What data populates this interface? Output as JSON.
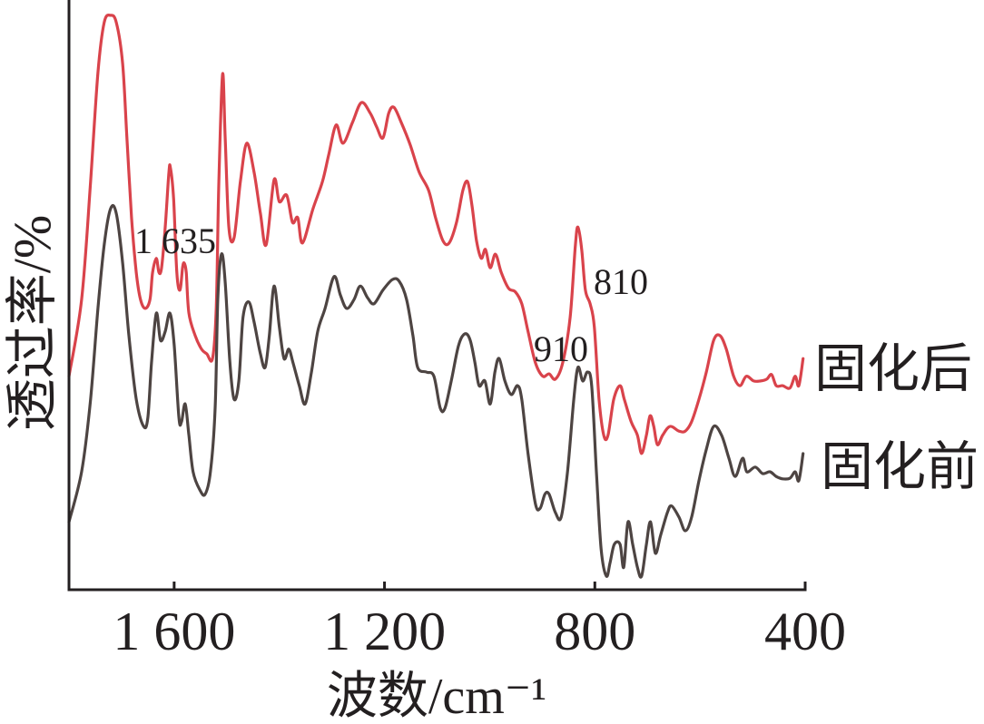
{
  "chart_data": {
    "type": "line",
    "xlabel": "波数/cm⁻¹",
    "ylabel": "透过率/%",
    "xlim": [
      1800,
      400
    ],
    "ylim": [
      0,
      100
    ],
    "xticks": [
      1600,
      1200,
      800,
      400
    ],
    "xtick_labels": [
      "1 600",
      "1 200",
      "800",
      "400"
    ],
    "grid": false,
    "legend": "right",
    "annotations": [
      "1 635",
      "910",
      "810"
    ],
    "series": [
      {
        "name": "固化后",
        "color": "#d9434b",
        "points": [
          [
            1800,
            36.2
          ],
          [
            1776,
            49.2
          ],
          [
            1759,
            69.2
          ],
          [
            1745,
            87.7
          ],
          [
            1733,
            96.2
          ],
          [
            1721,
            97.4
          ],
          [
            1710,
            96.2
          ],
          [
            1698,
            89.2
          ],
          [
            1690,
            76.9
          ],
          [
            1681,
            63.1
          ],
          [
            1672,
            53.8
          ],
          [
            1664,
            49.2
          ],
          [
            1655,
            47.7
          ],
          [
            1646,
            49.2
          ],
          [
            1641,
            53.8
          ],
          [
            1634,
            56.2
          ],
          [
            1629,
            53.8
          ],
          [
            1624,
            54.6
          ],
          [
            1617,
            61.5
          ],
          [
            1610,
            70.8
          ],
          [
            1607,
            71.5
          ],
          [
            1601,
            66.2
          ],
          [
            1595,
            53.8
          ],
          [
            1589,
            50.8
          ],
          [
            1584,
            54.6
          ],
          [
            1581,
            55.4
          ],
          [
            1577,
            53.8
          ],
          [
            1572,
            46.9
          ],
          [
            1560,
            43.1
          ],
          [
            1548,
            40.8
          ],
          [
            1538,
            40.0
          ],
          [
            1527,
            39.2
          ],
          [
            1520,
            47.7
          ],
          [
            1515,
            69.2
          ],
          [
            1508,
            87.4
          ],
          [
            1503,
            76.9
          ],
          [
            1496,
            61.5
          ],
          [
            1486,
            59.7
          ],
          [
            1474,
            69.2
          ],
          [
            1462,
            75.7
          ],
          [
            1448,
            70.8
          ],
          [
            1436,
            63.8
          ],
          [
            1425,
            58.5
          ],
          [
            1410,
            69.5
          ],
          [
            1400,
            65.8
          ],
          [
            1386,
            66.9
          ],
          [
            1375,
            62.3
          ],
          [
            1365,
            63.1
          ],
          [
            1356,
            58.8
          ],
          [
            1336,
            64.6
          ],
          [
            1318,
            69.2
          ],
          [
            1306,
            73.8
          ],
          [
            1292,
            78.8
          ],
          [
            1279,
            75.7
          ],
          [
            1261,
            79.2
          ],
          [
            1244,
            82.6
          ],
          [
            1227,
            80.8
          ],
          [
            1215,
            78.5
          ],
          [
            1203,
            76.6
          ],
          [
            1192,
            80.8
          ],
          [
            1182,
            81.8
          ],
          [
            1168,
            79.2
          ],
          [
            1151,
            75.4
          ],
          [
            1134,
            70.8
          ],
          [
            1116,
            67.7
          ],
          [
            1103,
            63.1
          ],
          [
            1089,
            59.2
          ],
          [
            1077,
            58.8
          ],
          [
            1063,
            62.3
          ],
          [
            1051,
            67.7
          ],
          [
            1042,
            69.2
          ],
          [
            1034,
            65.4
          ],
          [
            1025,
            59.2
          ],
          [
            1016,
            56.2
          ],
          [
            1008,
            57.7
          ],
          [
            999,
            54.6
          ],
          [
            989,
            56.9
          ],
          [
            978,
            53.8
          ],
          [
            964,
            51.1
          ],
          [
            951,
            50.5
          ],
          [
            939,
            48.5
          ],
          [
            927,
            43.8
          ],
          [
            913,
            38.5
          ],
          [
            899,
            36.2
          ],
          [
            887,
            36.6
          ],
          [
            875,
            35.7
          ],
          [
            861,
            38.5
          ],
          [
            847,
            46.2
          ],
          [
            837,
            58.5
          ],
          [
            832,
            61.5
          ],
          [
            825,
            57.7
          ],
          [
            818,
            50.8
          ],
          [
            809,
            48.5
          ],
          [
            801,
            44.6
          ],
          [
            792,
            32.3
          ],
          [
            783,
            26.2
          ],
          [
            775,
            26.2
          ],
          [
            764,
            32.3
          ],
          [
            752,
            34.6
          ],
          [
            744,
            32.3
          ],
          [
            731,
            28.5
          ],
          [
            719,
            26.2
          ],
          [
            711,
            23.1
          ],
          [
            702,
            26.2
          ],
          [
            695,
            29.5
          ],
          [
            688,
            27.7
          ],
          [
            681,
            24.6
          ],
          [
            671,
            26.2
          ],
          [
            657,
            27.7
          ],
          [
            640,
            26.9
          ],
          [
            628,
            26.9
          ],
          [
            616,
            28.5
          ],
          [
            602,
            32.3
          ],
          [
            588,
            36.9
          ],
          [
            574,
            42.3
          ],
          [
            562,
            43.1
          ],
          [
            550,
            40.8
          ],
          [
            536,
            36.2
          ],
          [
            524,
            34.6
          ],
          [
            512,
            36.2
          ],
          [
            498,
            35.4
          ],
          [
            485,
            35.4
          ],
          [
            473,
            35.7
          ],
          [
            464,
            36.5
          ],
          [
            455,
            34.6
          ],
          [
            443,
            34.6
          ],
          [
            429,
            34.2
          ],
          [
            419,
            36.2
          ],
          [
            412,
            34.6
          ],
          [
            404,
            39.2
          ]
        ]
      },
      {
        "name": "固化前",
        "color": "#4d4442",
        "points": [
          [
            1800,
            11.5
          ],
          [
            1776,
            20.0
          ],
          [
            1759,
            32.3
          ],
          [
            1745,
            47.7
          ],
          [
            1733,
            58.5
          ],
          [
            1721,
            64.6
          ],
          [
            1710,
            63.8
          ],
          [
            1698,
            55.4
          ],
          [
            1686,
            43.1
          ],
          [
            1672,
            32.3
          ],
          [
            1658,
            27.7
          ],
          [
            1650,
            29.2
          ],
          [
            1643,
            38.5
          ],
          [
            1634,
            46.9
          ],
          [
            1626,
            42.3
          ],
          [
            1617,
            43.8
          ],
          [
            1608,
            46.9
          ],
          [
            1600,
            41.5
          ],
          [
            1591,
            29.2
          ],
          [
            1586,
            28.5
          ],
          [
            1579,
            31.5
          ],
          [
            1572,
            26.2
          ],
          [
            1564,
            20.0
          ],
          [
            1551,
            16.9
          ],
          [
            1541,
            16.2
          ],
          [
            1531,
            20.0
          ],
          [
            1522,
            30.8
          ],
          [
            1517,
            49.2
          ],
          [
            1510,
            56.9
          ],
          [
            1503,
            52.3
          ],
          [
            1494,
            38.5
          ],
          [
            1486,
            32.3
          ],
          [
            1477,
            35.4
          ],
          [
            1469,
            46.2
          ],
          [
            1458,
            48.8
          ],
          [
            1448,
            45.4
          ],
          [
            1436,
            40.0
          ],
          [
            1427,
            37.7
          ],
          [
            1419,
            43.1
          ],
          [
            1410,
            51.5
          ],
          [
            1400,
            44.6
          ],
          [
            1391,
            39.2
          ],
          [
            1382,
            40.8
          ],
          [
            1374,
            38.5
          ],
          [
            1362,
            34.6
          ],
          [
            1351,
            31.5
          ],
          [
            1339,
            36.9
          ],
          [
            1327,
            43.8
          ],
          [
            1313,
            47.7
          ],
          [
            1296,
            53.1
          ],
          [
            1284,
            50.0
          ],
          [
            1272,
            47.7
          ],
          [
            1258,
            49.2
          ],
          [
            1246,
            51.5
          ],
          [
            1232,
            49.5
          ],
          [
            1220,
            48.5
          ],
          [
            1203,
            50.8
          ],
          [
            1185,
            52.6
          ],
          [
            1172,
            52.3
          ],
          [
            1158,
            49.2
          ],
          [
            1146,
            43.1
          ],
          [
            1137,
            37.7
          ],
          [
            1120,
            36.9
          ],
          [
            1106,
            36.2
          ],
          [
            1094,
            30.8
          ],
          [
            1085,
            30.8
          ],
          [
            1073,
            35.4
          ],
          [
            1059,
            41.5
          ],
          [
            1047,
            43.4
          ],
          [
            1037,
            42.3
          ],
          [
            1028,
            38.5
          ],
          [
            1020,
            34.6
          ],
          [
            1009,
            35.4
          ],
          [
            999,
            31.5
          ],
          [
            990,
            36.9
          ],
          [
            982,
            39.2
          ],
          [
            971,
            35.4
          ],
          [
            959,
            33.1
          ],
          [
            947,
            34.6
          ],
          [
            939,
            32.3
          ],
          [
            927,
            23.1
          ],
          [
            913,
            14.6
          ],
          [
            904,
            13.8
          ],
          [
            895,
            16.2
          ],
          [
            887,
            16.2
          ],
          [
            875,
            13.1
          ],
          [
            864,
            12.3
          ],
          [
            852,
            20.0
          ],
          [
            840,
            32.3
          ],
          [
            832,
            37.7
          ],
          [
            823,
            35.4
          ],
          [
            814,
            36.9
          ],
          [
            806,
            34.6
          ],
          [
            797,
            20.0
          ],
          [
            788,
            6.9
          ],
          [
            778,
            2.3
          ],
          [
            771,
            4.6
          ],
          [
            763,
            7.7
          ],
          [
            752,
            7.7
          ],
          [
            745,
            3.8
          ],
          [
            737,
            11.5
          ],
          [
            728,
            7.7
          ],
          [
            719,
            3.8
          ],
          [
            711,
            2.3
          ],
          [
            702,
            7.7
          ],
          [
            694,
            11.5
          ],
          [
            685,
            6.2
          ],
          [
            675,
            9.2
          ],
          [
            662,
            13.1
          ],
          [
            654,
            14.2
          ],
          [
            640,
            12.3
          ],
          [
            628,
            10.0
          ],
          [
            616,
            12.3
          ],
          [
            602,
            18.5
          ],
          [
            588,
            23.8
          ],
          [
            574,
            27.7
          ],
          [
            559,
            26.2
          ],
          [
            545,
            22.3
          ],
          [
            533,
            19.2
          ],
          [
            519,
            22.3
          ],
          [
            511,
            20.0
          ],
          [
            495,
            20.8
          ],
          [
            481,
            19.7
          ],
          [
            467,
            20.0
          ],
          [
            455,
            19.2
          ],
          [
            443,
            18.8
          ],
          [
            429,
            18.9
          ],
          [
            419,
            20.0
          ],
          [
            412,
            18.5
          ],
          [
            404,
            23.1
          ]
        ]
      }
    ]
  }
}
